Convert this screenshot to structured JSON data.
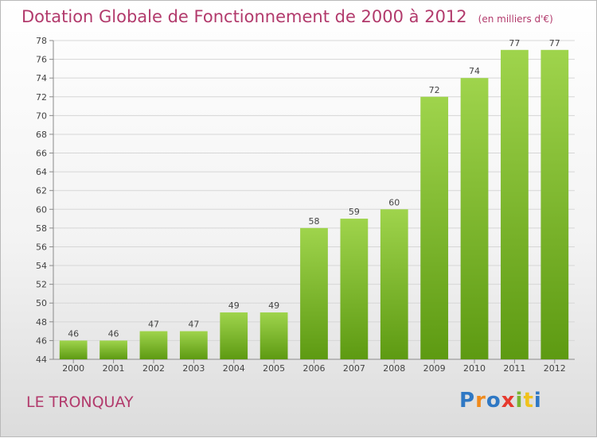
{
  "header": {
    "title": "Dotation Globale de Fonctionnement de 2000 à 2012",
    "subtitle": "(en milliers d'€)"
  },
  "footer": {
    "commune": "LE TRONQUAY",
    "logo_letters": [
      "P",
      "r",
      "o",
      "x",
      "i",
      "t",
      "i"
    ],
    "logo_colors": [
      "#2f78c4",
      "#f08a1c",
      "#2f78c4",
      "#e63a2e",
      "#7ab532",
      "#f0c21c",
      "#2f78c4"
    ]
  },
  "chart_data": {
    "type": "bar",
    "categories": [
      "2000",
      "2001",
      "2002",
      "2003",
      "2004",
      "2005",
      "2006",
      "2007",
      "2008",
      "2009",
      "2010",
      "2011",
      "2012"
    ],
    "values": [
      46,
      46,
      47,
      47,
      49,
      49,
      58,
      59,
      60,
      72,
      74,
      77,
      77
    ],
    "title": "Dotation Globale de Fonctionnement de 2000 à 2012",
    "xlabel": "",
    "ylabel": "",
    "ylim": [
      44,
      78
    ],
    "yticks": [
      44,
      46,
      48,
      50,
      52,
      54,
      56,
      58,
      60,
      62,
      64,
      66,
      68,
      70,
      72,
      74,
      76,
      78
    ],
    "grid": true,
    "bar_color_top": "#9fd44c",
    "bar_color_bottom": "#5d9a12"
  }
}
